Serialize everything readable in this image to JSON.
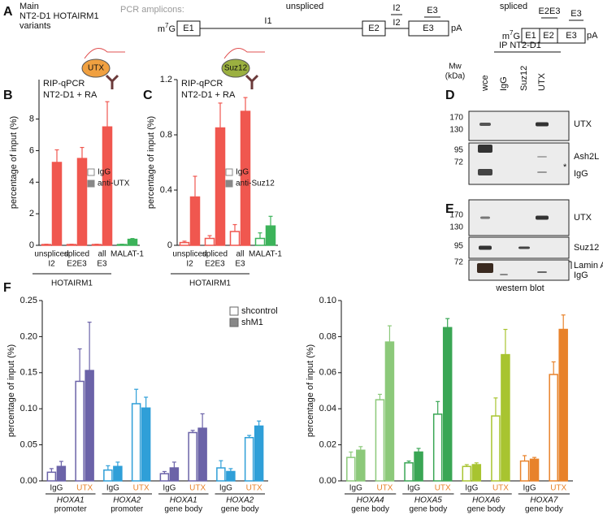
{
  "panel_a": {
    "label": "A",
    "title": [
      "Main",
      "NT2-D1 HOTAIRM1",
      "variants"
    ],
    "amplicons_label": "PCR amplicons:",
    "unspliced": {
      "heading": "unspliced",
      "cap": [
        "m",
        "7",
        "G"
      ],
      "exons": [
        "E1",
        "E2",
        "E3"
      ],
      "intron": "I1",
      "intron2": "I2",
      "amplicons": [
        "I2",
        "E3"
      ],
      "tail": "pA"
    },
    "spliced": {
      "heading": "spliced",
      "cap": [
        "m",
        "7",
        "G"
      ],
      "exons": [
        "E1",
        "E2",
        "E3"
      ],
      "amplicons": [
        "E2E3",
        "E3"
      ],
      "tail": "pA"
    }
  },
  "blots": {
    "D": {
      "label": "D",
      "ip_label": "IP NT2-D1",
      "mw_label": [
        "Mw",
        "(kDa)"
      ],
      "lanes": [
        "wce",
        "IgG",
        "Suz12",
        "UTX"
      ],
      "markers": [
        "170",
        "130",
        "95",
        "72"
      ],
      "bands": [
        "UTX",
        "Ash2L",
        "*",
        "IgG"
      ]
    },
    "E": {
      "label": "E",
      "markers": [
        "170",
        "130",
        "95",
        "72"
      ],
      "bands": [
        "UTX",
        "Suz12",
        "Lamin A/C",
        "IgG"
      ],
      "caption": "western blot"
    }
  },
  "panel_f_label": "F",
  "chart_data": [
    {
      "type": "bar",
      "panel": "B",
      "title_lines": [
        "RIP-qPCR",
        "NT2-D1 + RA"
      ],
      "icon_label": "UTX",
      "ylabel": "percentage of input (%)",
      "categories": [
        [
          "unspliced",
          "I2"
        ],
        [
          "spliced",
          "E2E3"
        ],
        [
          "all",
          "E3"
        ],
        [
          "MALAT-1"
        ]
      ],
      "group_label": "HOTAIRM1",
      "colors": [
        "#f0574f",
        "#f0574f",
        "#f0574f",
        "#3cb35a"
      ],
      "ylim": [
        0,
        10.5
      ],
      "yticks": [
        0,
        2,
        4,
        6,
        8
      ],
      "series": [
        {
          "name": "IgG",
          "fill": "outline",
          "values": [
            0.05,
            0.05,
            0.05,
            0.05
          ],
          "errors": [
            0.02,
            0.02,
            0.02,
            0.02
          ]
        },
        {
          "name": "anti-UTX",
          "fill": "solid",
          "values": [
            5.25,
            5.5,
            7.5,
            0.38
          ],
          "errors": [
            0.8,
            0.7,
            1.6,
            0.05
          ]
        }
      ]
    },
    {
      "type": "bar",
      "panel": "C",
      "title_lines": [
        "RIP-qPCR",
        "NT2-D1 + RA"
      ],
      "icon_label": "Suz12",
      "ylabel": "percentage of input (%)",
      "categories": [
        [
          "unspliced",
          "I2"
        ],
        [
          "spliced",
          "E2E3"
        ],
        [
          "all",
          "E3"
        ],
        [
          "MALAT-1"
        ]
      ],
      "group_label": "HOTAIRM1",
      "colors": [
        "#f0574f",
        "#f0574f",
        "#f0574f",
        "#3cb35a"
      ],
      "ylim": [
        0,
        1.2
      ],
      "yticks": [
        0,
        0.4,
        0.8,
        1.2
      ],
      "series": [
        {
          "name": "IgG",
          "fill": "outline",
          "values": [
            0.02,
            0.05,
            0.1,
            0.05
          ],
          "errors": [
            0.01,
            0.02,
            0.05,
            0.04
          ]
        },
        {
          "name": "anti-Suz12",
          "fill": "solid",
          "values": [
            0.35,
            0.85,
            0.97,
            0.14
          ],
          "errors": [
            0.15,
            0.18,
            0.1,
            0.07
          ]
        }
      ]
    },
    {
      "type": "grouped_bar",
      "ylabel": "percentage of input (%)",
      "legend": "upper right",
      "ylim": [
        0,
        0.25
      ],
      "yticks": [
        {
          "value": 0,
          "label": "0.00"
        },
        0.05,
        {
          "value": 0.1,
          "label": "0.10"
        },
        0.15,
        {
          "value": 0.2,
          "label": "0.20"
        },
        0.25
      ],
      "categories": [
        "IgG",
        "UTX",
        "IgG",
        "UTX",
        "IgG",
        "UTX",
        "IgG",
        "UTX"
      ],
      "category_colors": [
        "#222222",
        "#e8822a",
        "#222222",
        "#e8822a",
        "#222222",
        "#e8822a",
        "#222222",
        "#e8822a"
      ],
      "groups": [
        {
          "gene": "HOXA1",
          "region": "promoter",
          "color": "#6b63a8"
        },
        {
          "gene": "HOXA2",
          "region": "promoter",
          "color": "#2f9fd8"
        },
        {
          "gene": "HOXA1",
          "region": "gene body",
          "color": "#6b63a8"
        },
        {
          "gene": "HOXA2",
          "region": "gene body",
          "color": "#2f9fd8"
        }
      ],
      "series": [
        {
          "name": "shcontrol",
          "fill": "outline",
          "values": [
            0.012,
            0.138,
            0.015,
            0.107,
            0.01,
            0.067,
            0.018,
            0.06
          ],
          "errors": [
            0.005,
            0.045,
            0.006,
            0.02,
            0.003,
            0.003,
            0.01,
            0.003
          ]
        },
        {
          "name": "shM1",
          "fill": "solid",
          "values": [
            0.02,
            0.153,
            0.02,
            0.101,
            0.018,
            0.073,
            0.013,
            0.076
          ],
          "errors": [
            0.007,
            0.067,
            0.006,
            0.015,
            0.008,
            0.02,
            0.004,
            0.007
          ]
        }
      ]
    },
    {
      "type": "grouped_bar",
      "ylabel": "percentage of input (%)",
      "ylim": [
        0,
        0.1
      ],
      "yticks": [
        {
          "value": 0,
          "label": "0.00"
        },
        0.02,
        0.04,
        0.06,
        0.08,
        {
          "value": 0.1,
          "label": "0.10"
        }
      ],
      "categories": [
        "IgG",
        "UTX",
        "IgG",
        "UTX",
        "IgG",
        "UTX",
        "IgG",
        "UTX"
      ],
      "category_colors": [
        "#222222",
        "#e8822a",
        "#222222",
        "#e8822a",
        "#222222",
        "#e8822a",
        "#222222",
        "#e8822a"
      ],
      "groups": [
        {
          "gene": "HOXA4",
          "region": "gene body",
          "color": "#8cc97a"
        },
        {
          "gene": "HOXA5",
          "region": "gene body",
          "color": "#3aa655"
        },
        {
          "gene": "HOXA6",
          "region": "gene body",
          "color": "#a8c430"
        },
        {
          "gene": "HOXA7",
          "region": "gene body",
          "color": "#e8822a"
        }
      ],
      "series": [
        {
          "fill": "outline",
          "values": [
            0.013,
            0.045,
            0.01,
            0.037,
            0.008,
            0.036,
            0.011,
            0.059
          ],
          "errors": [
            0.003,
            0.003,
            0.001,
            0.007,
            0.001,
            0.01,
            0.003,
            0.007
          ]
        },
        {
          "fill": "solid",
          "values": [
            0.017,
            0.077,
            0.016,
            0.085,
            0.009,
            0.07,
            0.012,
            0.084
          ],
          "errors": [
            0.002,
            0.009,
            0.002,
            0.005,
            0.001,
            0.014,
            0.001,
            0.008
          ]
        }
      ]
    }
  ]
}
